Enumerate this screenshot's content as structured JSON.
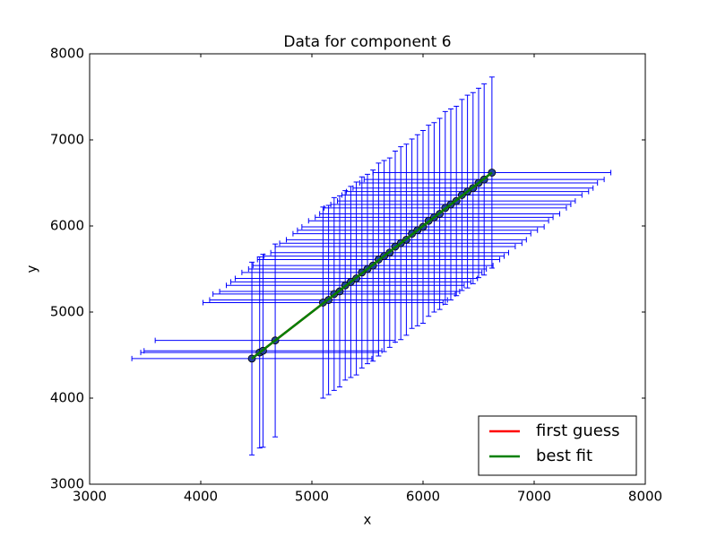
{
  "chart_data": {
    "type": "errorbar",
    "title": "Data for component 6",
    "x_label": "x",
    "y_label": "y",
    "xlim": [
      3000,
      8000
    ],
    "ylim": [
      3000,
      8000
    ],
    "xticks": [
      3000,
      4000,
      5000,
      6000,
      7000,
      8000
    ],
    "yticks": [
      3000,
      4000,
      5000,
      6000,
      7000,
      8000
    ],
    "legend": "lower right",
    "points": {
      "color": "#0000ff",
      "marker_color": "#1f3f9f",
      "x": [
        4460,
        4530,
        4560,
        4670,
        5100,
        5150,
        5200,
        5250,
        5300,
        5350,
        5400,
        5450,
        5500,
        5550,
        5600,
        5650,
        5700,
        5750,
        5800,
        5850,
        5900,
        5950,
        6000,
        6050,
        6100,
        6150,
        6200,
        6250,
        6300,
        6350,
        6400,
        6450,
        6500,
        6550,
        6620
      ],
      "y": [
        4460,
        4530,
        4550,
        4670,
        5110,
        5140,
        5210,
        5240,
        5310,
        5350,
        5390,
        5460,
        5500,
        5540,
        5610,
        5650,
        5690,
        5760,
        5800,
        5840,
        5910,
        5950,
        5990,
        6060,
        6100,
        6140,
        6210,
        6250,
        6290,
        6360,
        6400,
        6440,
        6500,
        6540,
        6620
      ],
      "xerr": [
        1080,
        1070,
        1070,
        1080,
        1080,
        1070,
        1090,
        1080,
        1070,
        1080,
        1090,
        1080,
        1070,
        1080,
        1090,
        1080,
        1070,
        1080,
        1090,
        1080,
        1070,
        1080,
        1090,
        1080,
        1070,
        1080,
        1090,
        1080,
        1070,
        1080,
        1090,
        1080,
        1070,
        1080,
        1070
      ],
      "yerr": [
        1120,
        1110,
        1120,
        1120,
        1110,
        1100,
        1120,
        1110,
        1100,
        1110,
        1120,
        1110,
        1100,
        1110,
        1120,
        1110,
        1100,
        1110,
        1120,
        1110,
        1100,
        1110,
        1120,
        1110,
        1100,
        1110,
        1120,
        1110,
        1100,
        1110,
        1120,
        1110,
        1100,
        1110,
        1110
      ]
    },
    "lines": [
      {
        "name": "first guess",
        "color": "#ff0000",
        "x": [
          4460,
          6620
        ],
        "y": [
          4460,
          6620
        ]
      },
      {
        "name": "best fit",
        "color": "#008000",
        "x": [
          4460,
          6620
        ],
        "y": [
          4460,
          6620
        ]
      }
    ]
  }
}
